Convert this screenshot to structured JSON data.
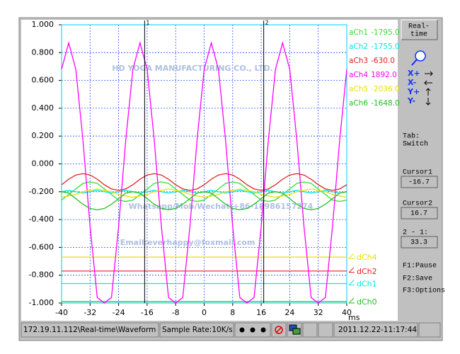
{
  "chart_data": {
    "type": "line",
    "x_label": "ms",
    "x": [
      -40,
      -38,
      -36,
      -34,
      -32,
      -30,
      -28,
      -26,
      -24,
      -22,
      -20,
      -18,
      -16,
      -14,
      -12,
      -10,
      -8,
      -6,
      -4,
      -2,
      0,
      2,
      4,
      6,
      8,
      10,
      12,
      14,
      16,
      18,
      20,
      22,
      24,
      26,
      28,
      30,
      32,
      34,
      36,
      38,
      40
    ],
    "xlim": [
      -40,
      40
    ],
    "xticks": [
      -40,
      -32,
      -24,
      -16,
      -8,
      0,
      8,
      16,
      24,
      32,
      40
    ],
    "ylim": [
      -1,
      1
    ],
    "yticks": [
      {
        "value": -1,
        "label": "-1.000"
      },
      {
        "value": -0.8,
        "label": "-0.800"
      },
      {
        "value": -0.6,
        "label": "-0.600"
      },
      {
        "value": -0.4,
        "label": "-0.400"
      },
      {
        "value": -0.2,
        "label": "-0.200"
      },
      {
        "value": 0,
        "label": "0.000"
      },
      {
        "value": 0.2,
        "label": "0.200"
      },
      {
        "value": 0.4,
        "label": "0.400"
      },
      {
        "value": 0.6,
        "label": "0.600"
      },
      {
        "value": 0.8,
        "label": "0.800"
      },
      {
        "value": 1,
        "label": "1.000"
      }
    ],
    "grid": true,
    "series": [
      {
        "name": "aCh1",
        "readout": "-1795.0",
        "color": "#33dd33",
        "values": [
          -0.26,
          -0.22,
          -0.18,
          -0.14,
          -0.13,
          -0.14,
          -0.18,
          -0.22,
          -0.26,
          -0.27,
          -0.26,
          -0.22,
          -0.18,
          -0.14,
          -0.13,
          -0.14,
          -0.18,
          -0.22,
          -0.26,
          -0.27,
          -0.26,
          -0.22,
          -0.18,
          -0.14,
          -0.13,
          -0.14,
          -0.18,
          -0.22,
          -0.26,
          -0.27,
          -0.26,
          -0.22,
          -0.18,
          -0.14,
          -0.13,
          -0.14,
          -0.18,
          -0.22,
          -0.26,
          -0.27,
          -0.26
        ]
      },
      {
        "name": "aCh2",
        "readout": "-1755.0",
        "color": "#00e8e8",
        "values": [
          -0.2,
          -0.19,
          -0.2,
          -0.21,
          -0.2,
          -0.19,
          -0.2,
          -0.21,
          -0.2,
          -0.19,
          -0.2,
          -0.21,
          -0.2,
          -0.19,
          -0.2,
          -0.21,
          -0.2,
          -0.19,
          -0.2,
          -0.21,
          -0.2,
          -0.19,
          -0.2,
          -0.21,
          -0.2,
          -0.19,
          -0.2,
          -0.21,
          -0.2,
          -0.19,
          -0.2,
          -0.21,
          -0.2,
          -0.19,
          -0.2,
          -0.21,
          -0.2,
          -0.19,
          -0.2,
          -0.21,
          -0.2
        ]
      },
      {
        "name": "aCh3",
        "readout": "-630.0",
        "color": "#e02020",
        "values": [
          -0.15,
          -0.11,
          -0.08,
          -0.07,
          -0.08,
          -0.11,
          -0.15,
          -0.18,
          -0.19,
          -0.18,
          -0.15,
          -0.11,
          -0.08,
          -0.07,
          -0.08,
          -0.11,
          -0.15,
          -0.18,
          -0.19,
          -0.18,
          -0.15,
          -0.11,
          -0.08,
          -0.07,
          -0.08,
          -0.11,
          -0.15,
          -0.18,
          -0.19,
          -0.18,
          -0.15,
          -0.11,
          -0.08,
          -0.07,
          -0.08,
          -0.11,
          -0.15,
          -0.18,
          -0.19,
          -0.18,
          -0.15
        ]
      },
      {
        "name": "aCh4",
        "readout": "1892.0",
        "color": "#ff00ff",
        "values": [
          0.68,
          0.87,
          0.68,
          0.17,
          -0.45,
          -0.96,
          -1.0,
          -0.96,
          -0.45,
          0.17,
          0.68,
          0.87,
          0.68,
          0.17,
          -0.45,
          -0.96,
          -1.0,
          -0.96,
          -0.45,
          0.17,
          0.68,
          0.87,
          0.68,
          0.17,
          -0.45,
          -0.96,
          -1.0,
          -0.96,
          -0.45,
          0.17,
          0.68,
          0.87,
          0.68,
          0.17,
          -0.45,
          -0.96,
          -1.0,
          -0.96,
          -0.45,
          0.17,
          0.68
        ]
      },
      {
        "name": "aCh5",
        "readout": "-2036.0",
        "color": "#e8e000",
        "values": [
          -0.24,
          -0.23,
          -0.22,
          -0.2,
          -0.19,
          -0.18,
          -0.19,
          -0.2,
          -0.22,
          -0.23,
          -0.24,
          -0.23,
          -0.22,
          -0.2,
          -0.19,
          -0.18,
          -0.19,
          -0.2,
          -0.22,
          -0.23,
          -0.24,
          -0.23,
          -0.22,
          -0.2,
          -0.19,
          -0.18,
          -0.19,
          -0.2,
          -0.22,
          -0.23,
          -0.24,
          -0.23,
          -0.22,
          -0.2,
          -0.19,
          -0.18,
          -0.19,
          -0.2,
          -0.22,
          -0.23,
          -0.24
        ]
      },
      {
        "name": "aCh6",
        "readout": "-1648.0",
        "color": "#22c022",
        "values": [
          -0.2,
          -0.21,
          -0.25,
          -0.29,
          -0.32,
          -0.33,
          -0.32,
          -0.29,
          -0.25,
          -0.21,
          -0.2,
          -0.21,
          -0.25,
          -0.29,
          -0.32,
          -0.33,
          -0.32,
          -0.29,
          -0.25,
          -0.21,
          -0.2,
          -0.21,
          -0.25,
          -0.29,
          -0.32,
          -0.33,
          -0.32,
          -0.29,
          -0.25,
          -0.21,
          -0.2,
          -0.21,
          -0.25,
          -0.29,
          -0.32,
          -0.33,
          -0.32,
          -0.29,
          -0.25,
          -0.21,
          -0.2
        ]
      }
    ],
    "digital": [
      {
        "name": "dCh4",
        "color": "#e8e000",
        "value": -0.67
      },
      {
        "name": "dCh2",
        "color": "#e02020",
        "value": -0.77
      },
      {
        "name": "dCh1",
        "color": "#00e8e8",
        "value": -0.86
      },
      {
        "name": "dCh0",
        "color": "#22c022",
        "value": -0.99
      }
    ],
    "cursors": [
      {
        "label": "1",
        "value": -16.7
      },
      {
        "label": "2",
        "value": 16.7
      }
    ],
    "watermarks": [
      "HD YOGA MANUFACTURING CO., LTD.",
      "Whatsapp/Mob/Wechat:+86-18986157274",
      "Email:everhappy@foxmail.com"
    ]
  },
  "panel": {
    "mode": [
      "Real-",
      "time"
    ],
    "nav": [
      "X+",
      "X-",
      "Y+",
      "Y-"
    ],
    "tab": [
      "Tab:",
      "Switch"
    ],
    "cursor1_label": "Cursor1",
    "cursor2_label": "Cursor2",
    "delta_label": "2 - 1:",
    "delta": 33.3,
    "keys": [
      "F1:Pause",
      "F2:Save",
      "F3:Options"
    ]
  },
  "status_bar": {
    "path": "172.19.11.112\\Real-time\\Waveform",
    "sample_rate": "Sample Rate:10K/s",
    "time": "2011.12.22-11:17:44"
  }
}
